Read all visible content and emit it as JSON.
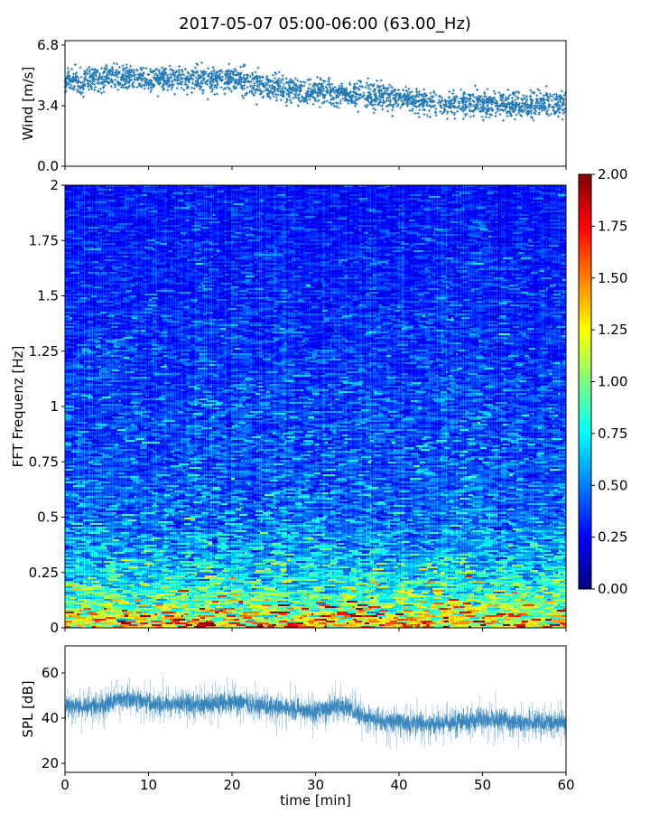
{
  "chart_data": [
    {
      "type": "scatter",
      "name": "wind",
      "ylabel": "Wind [m/s]",
      "ylim": [
        0,
        7.05
      ],
      "yticks": [
        "0.0",
        "3.4",
        "6.8"
      ],
      "ytick_values": [
        0,
        3.4,
        6.8
      ],
      "xlim": [
        0,
        60
      ],
      "xticks": [
        0,
        10,
        20,
        30,
        40,
        50,
        60
      ],
      "trend_x": [
        0,
        5,
        10,
        15,
        20,
        25,
        30,
        35,
        40,
        45,
        50,
        55,
        60
      ],
      "trend_y": [
        4.8,
        5.0,
        4.9,
        4.9,
        4.9,
        4.4,
        4.2,
        4.0,
        3.8,
        3.5,
        3.5,
        3.4,
        3.6
      ],
      "spread": 0.7,
      "points": 2400,
      "color": "#1f77b4"
    },
    {
      "type": "heatmap",
      "name": "spectrogram",
      "ylabel": "FFT Frequenz [Hz]",
      "ylim": [
        0,
        2
      ],
      "xlim": [
        0,
        60
      ],
      "yticks": [
        "0",
        "0.25",
        "0.5",
        "0.75",
        "1",
        "1.25",
        "1.5",
        "1.75",
        "2"
      ],
      "ytick_values": [
        0,
        0.25,
        0.5,
        0.75,
        1,
        1.25,
        1.5,
        1.75,
        2
      ],
      "mean_profile_freq": [
        0,
        0.05,
        0.1,
        0.2,
        0.3,
        0.5,
        0.75,
        1,
        1.5,
        2
      ],
      "mean_profile_value": [
        1.4,
        1.2,
        0.95,
        0.75,
        0.6,
        0.45,
        0.4,
        0.38,
        0.32,
        0.28
      ],
      "colorbar": {
        "vmin": 0,
        "vmax": 2,
        "ticks": [
          "0.00",
          "0.25",
          "0.50",
          "0.75",
          "1.00",
          "1.25",
          "1.50",
          "1.75",
          "2.00"
        ],
        "tick_values": [
          0,
          0.25,
          0.5,
          0.75,
          1,
          1.25,
          1.5,
          1.75,
          2
        ],
        "colormap": "jet"
      }
    },
    {
      "type": "line",
      "name": "spl",
      "ylabel": "SPL [dB]",
      "xlabel": "time [min]",
      "ylim": [
        16,
        72
      ],
      "yticks": [
        "20",
        "40",
        "60"
      ],
      "ytick_values": [
        20,
        40,
        60
      ],
      "xlim": [
        0,
        60
      ],
      "xticks": [
        "0",
        "10",
        "20",
        "30",
        "40",
        "50",
        "60"
      ],
      "xtick_values": [
        0,
        10,
        20,
        30,
        40,
        50,
        60
      ],
      "trend_x": [
        0,
        5,
        7,
        10,
        15,
        20,
        25,
        30,
        33,
        36,
        40,
        45,
        50,
        55,
        60
      ],
      "trend_y": [
        45,
        46,
        49,
        47,
        46,
        47,
        45,
        43,
        46,
        40,
        38,
        37,
        40,
        38,
        38
      ],
      "color": "#1f77b4"
    }
  ],
  "title": "2017-05-07 05:00-06:00 (63.00_Hz)"
}
